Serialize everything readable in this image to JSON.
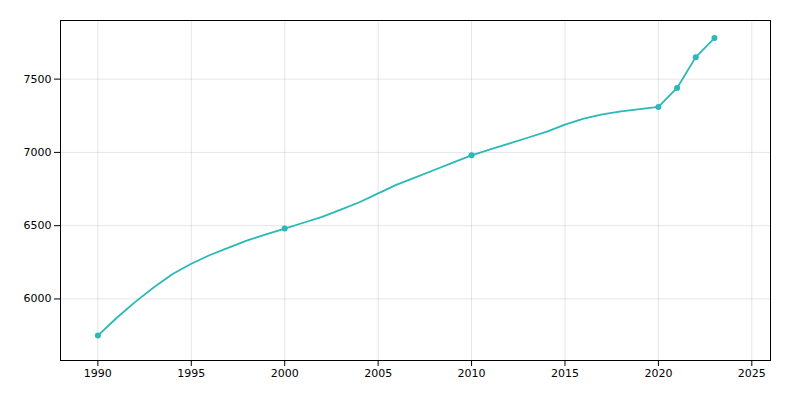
{
  "chart_data": {
    "type": "line",
    "x": [
      1990,
      1991,
      1992,
      1993,
      1994,
      1995,
      1996,
      1997,
      1998,
      1999,
      2000,
      2001,
      2002,
      2003,
      2004,
      2005,
      2006,
      2007,
      2008,
      2009,
      2010,
      2011,
      2012,
      2013,
      2014,
      2015,
      2016,
      2017,
      2018,
      2019,
      2020,
      2021,
      2022,
      2023
    ],
    "series": [
      {
        "type": "line",
        "color": "#2ab8b8",
        "values": [
          5750,
          5870,
          5980,
          6080,
          6170,
          6240,
          6300,
          6350,
          6400,
          6440,
          6480,
          6520,
          6560,
          6610,
          6660,
          6720,
          6780,
          6830,
          6880,
          6930,
          6980,
          7020,
          7060,
          7100,
          7140,
          7190,
          7230,
          7260,
          7280,
          7295,
          7310,
          7440,
          7650,
          7780
        ]
      },
      {
        "type": "scatter",
        "color": "#2ab8b8",
        "marker": "circle",
        "x": [
          1990,
          2000,
          2010,
          2020,
          2021,
          2022,
          2023
        ],
        "values": [
          5750,
          6480,
          6980,
          7310,
          7440,
          7650,
          7780
        ]
      }
    ],
    "xlim": [
      1988,
      2026
    ],
    "ylim": [
      5580,
      7900
    ],
    "xticks": [
      1990,
      1995,
      2000,
      2005,
      2010,
      2015,
      2020,
      2025
    ],
    "yticks": [
      6000,
      6500,
      7000,
      7500
    ],
    "grid": true
  }
}
